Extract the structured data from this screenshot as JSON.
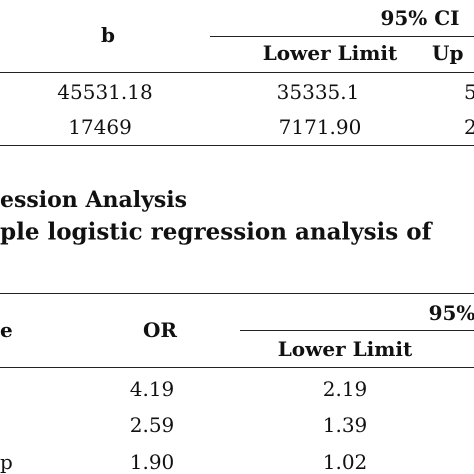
{
  "table1": {
    "header": {
      "b": "b",
      "ci": "95% CI",
      "lower": "Lower Limit",
      "upper": "Up"
    },
    "rows": [
      [
        "45531.18",
        "35335.1",
        "5"
      ],
      [
        "17469",
        "7171.90",
        "2"
      ]
    ]
  },
  "section": {
    "title": "ession Analysis",
    "caption": "ple logistic regression analysis of"
  },
  "table2": {
    "header": {
      "var": "e",
      "or": "OR",
      "ci": "95%",
      "lower": "Lower Limit"
    },
    "rows": [
      [
        "",
        "4.19",
        "2.19"
      ],
      [
        "",
        "2.59",
        "1.39"
      ],
      [
        "p",
        "1.90",
        "1.02"
      ]
    ]
  }
}
